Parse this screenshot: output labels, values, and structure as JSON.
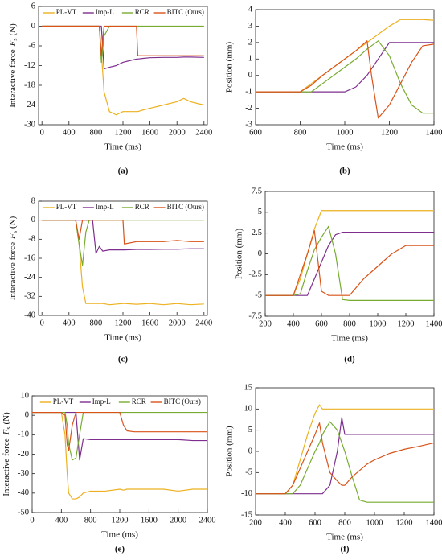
{
  "chart_data": [
    {
      "type": "line",
      "panel_label": "(a)",
      "x_label": "Time (ms)",
      "y_label": {
        "text": "Interactive force",
        "symbol": "F",
        "subscript": "s",
        "unit": "(N)"
      },
      "legend": "upper center",
      "xlim": [
        -50,
        2450
      ],
      "xticks": [
        0,
        400,
        800,
        1200,
        1600,
        2000,
        2400
      ],
      "ylim": [
        -30,
        6
      ],
      "yticks": [
        -30,
        -24,
        -18,
        -12,
        -6,
        0,
        6
      ],
      "x": [
        0,
        400,
        800,
        850,
        880,
        920,
        1000,
        1100,
        1200,
        1300,
        1400,
        1420,
        1500,
        1600,
        1800,
        2000,
        2100,
        2200,
        2400
      ],
      "series": [
        {
          "name": "PL-VT",
          "color": "#edb120",
          "values": [
            0,
            0,
            0,
            0,
            -8,
            -20,
            -26,
            -27,
            -26,
            -26,
            -26,
            -26,
            -25.5,
            -25,
            -24,
            -23,
            -22,
            -23,
            -24
          ]
        },
        {
          "name": "Imp-L",
          "color": "#7e2f8e",
          "values": [
            0,
            0,
            0,
            0,
            0,
            -13,
            -12.5,
            -12,
            -11,
            -10.5,
            -10,
            -10,
            -9.8,
            -9.6,
            -9.5,
            -9.5,
            -9.4,
            -9.4,
            -9.5
          ]
        },
        {
          "name": "RCR",
          "color": "#77ac30",
          "values": [
            0,
            0,
            0,
            0,
            -11,
            -3,
            0,
            0,
            0,
            0,
            0,
            0,
            0,
            0,
            0,
            0,
            0,
            0,
            0
          ]
        },
        {
          "name": "BITC (Ours)",
          "color": "#d95319",
          "values": [
            0,
            0,
            0,
            0,
            -9,
            0,
            0,
            0,
            0,
            0,
            0,
            -9,
            -9,
            -9,
            -9,
            -9,
            -9,
            -9,
            -9
          ]
        }
      ]
    },
    {
      "type": "line",
      "panel_label": "(b)",
      "x_label": "Time (ms)",
      "y_label": "Position (mm)",
      "xlim": [
        600,
        1400
      ],
      "xticks": [
        600,
        800,
        1000,
        1200,
        1400
      ],
      "ylim": [
        -3,
        4
      ],
      "yticks": [
        -3,
        -2,
        -1,
        0,
        1,
        2,
        3,
        4
      ],
      "x": [
        600,
        800,
        850,
        900,
        1000,
        1050,
        1100,
        1120,
        1150,
        1200,
        1250,
        1300,
        1350,
        1400
      ],
      "series": [
        {
          "name": "PL-VT",
          "color": "#edb120",
          "values": [
            -1,
            -1,
            -0.5,
            0,
            1,
            1.5,
            2,
            2.2,
            2.5,
            3,
            3.4,
            3.4,
            3.4,
            3.35
          ]
        },
        {
          "name": "Imp-L",
          "color": "#7e2f8e",
          "values": [
            -1,
            -1,
            -1,
            -1,
            -1,
            -0.7,
            0,
            0.4,
            1,
            2,
            2,
            2,
            2,
            2
          ]
        },
        {
          "name": "RCR",
          "color": "#77ac30",
          "values": [
            -1,
            -1,
            -1,
            -0.5,
            0.5,
            1,
            1.6,
            1.8,
            2.1,
            1.2,
            -0.5,
            -1.8,
            -2.3,
            -2.3
          ]
        },
        {
          "name": "BITC (Ours)",
          "color": "#d95319",
          "values": [
            -1,
            -1,
            -0.6,
            0,
            1,
            1.5,
            2.1,
            0,
            -2.6,
            -1.8,
            -0.5,
            0.8,
            1.8,
            1.9
          ]
        }
      ]
    },
    {
      "type": "line",
      "panel_label": "(c)",
      "x_label": "Time (ms)",
      "y_label": {
        "text": "Interactive force",
        "symbol": "F",
        "subscript": "s",
        "unit": "(N)"
      },
      "legend": "upper center",
      "xlim": [
        -50,
        2450
      ],
      "xticks": [
        0,
        400,
        800,
        1200,
        1600,
        2000,
        2400
      ],
      "ylim": [
        -40,
        8
      ],
      "yticks": [
        -40,
        -32,
        -24,
        -16,
        -8,
        0,
        8
      ],
      "x": [
        0,
        400,
        500,
        550,
        600,
        650,
        700,
        750,
        800,
        850,
        900,
        1000,
        1200,
        1220,
        1400,
        1600,
        1800,
        2000,
        2200,
        2400
      ],
      "series": [
        {
          "name": "PL-VT",
          "color": "#edb120",
          "values": [
            0,
            0,
            0,
            -10,
            -28,
            -35,
            -35,
            -35,
            -35,
            -35,
            -35,
            -35.5,
            -35,
            -35,
            -35.3,
            -35,
            -35.5,
            -35,
            -35.5,
            -35.2
          ]
        },
        {
          "name": "Imp-L",
          "color": "#7e2f8e",
          "values": [
            0,
            0,
            0,
            0,
            0,
            0,
            0,
            0,
            -14,
            -11,
            -13,
            -12.5,
            -12.5,
            -12.5,
            -12.3,
            -12.3,
            -12.2,
            -12.2,
            -12,
            -12
          ]
        },
        {
          "name": "RCR",
          "color": "#77ac30",
          "values": [
            0,
            0,
            0,
            -10,
            -19,
            -5,
            0,
            0,
            0,
            0,
            0,
            0,
            0,
            0,
            0,
            0,
            0,
            0,
            0,
            0
          ]
        },
        {
          "name": "BITC (Ours)",
          "color": "#d95319",
          "values": [
            0,
            0,
            0,
            -8,
            0,
            0,
            0,
            0,
            0,
            0,
            0,
            0,
            0,
            -10,
            -9,
            -9,
            -9,
            -8.5,
            -9,
            -9
          ]
        }
      ]
    },
    {
      "type": "line",
      "panel_label": "(d)",
      "x_label": "Time (ms)",
      "y_label": "Position (mm)",
      "xlim": [
        200,
        1400
      ],
      "xticks": [
        200,
        400,
        600,
        800,
        1000,
        1200,
        1400
      ],
      "ylim": [
        -7.5,
        7.5
      ],
      "yticks": [
        -7.5,
        -5,
        -2.5,
        0,
        2.5,
        5,
        7.5
      ],
      "x": [
        200,
        400,
        450,
        500,
        550,
        600,
        650,
        700,
        750,
        800,
        900,
        1000,
        1100,
        1200,
        1300,
        1400
      ],
      "series": [
        {
          "name": "PL-VT",
          "color": "#edb120",
          "values": [
            -5,
            -5,
            -3,
            0,
            3,
            5.2,
            5.2,
            5.2,
            5.2,
            5.2,
            5.2,
            5.2,
            5.2,
            5.2,
            5.2,
            5.2
          ]
        },
        {
          "name": "Imp-L",
          "color": "#7e2f8e",
          "values": [
            -5,
            -5,
            -5,
            -5,
            -3,
            -1,
            1,
            2.3,
            2.6,
            2.6,
            2.6,
            2.6,
            2.6,
            2.6,
            2.6,
            2.6
          ]
        },
        {
          "name": "RCR",
          "color": "#77ac30",
          "values": [
            -5,
            -5,
            -4.8,
            -2,
            0.5,
            2,
            3.3,
            0,
            -5.5,
            -5.6,
            -5.6,
            -5.6,
            -5.6,
            -5.6,
            -5.6,
            -5.6
          ]
        },
        {
          "name": "BITC (Ours)",
          "color": "#d95319",
          "values": [
            -5,
            -5,
            -2.5,
            0,
            2.8,
            -4.5,
            -5,
            -5,
            -5,
            -5,
            -3,
            -1.5,
            0,
            1,
            1,
            1
          ]
        }
      ]
    },
    {
      "type": "line",
      "panel_label": "(e)",
      "x_label": "Time (ms)",
      "y_label": {
        "text": "Interactive force",
        "symbol": "F",
        "subscript": "s",
        "unit": "(N)"
      },
      "legend": "upper center",
      "xlim": [
        0,
        2400
      ],
      "xticks": [
        0,
        400,
        800,
        1200,
        1600,
        2000,
        2400
      ],
      "ylim": [
        -50,
        10
      ],
      "yticks": [
        -50,
        -40,
        -30,
        -20,
        -10,
        0,
        10
      ],
      "x": [
        0,
        400,
        450,
        480,
        500,
        550,
        600,
        650,
        700,
        800,
        1000,
        1200,
        1250,
        1300,
        1400,
        1600,
        1800,
        2000,
        2200,
        2400
      ],
      "series": [
        {
          "name": "PL-VT",
          "color": "#edb120",
          "values": [
            1.5,
            1.5,
            -10,
            -30,
            -40,
            -43,
            -43,
            -42,
            -40,
            -39,
            -39,
            -38,
            -38.5,
            -38,
            -38,
            -38,
            -38,
            -39,
            -38,
            -38
          ]
        },
        {
          "name": "Imp-L",
          "color": "#7e2f8e",
          "values": [
            1.5,
            1.5,
            1.5,
            1.5,
            1.5,
            1.5,
            1.5,
            -23,
            -12,
            -12.5,
            -12.5,
            -12.5,
            -12.5,
            -12.5,
            -12.5,
            -12.5,
            -12.5,
            -12.5,
            -13,
            -13
          ]
        },
        {
          "name": "RCR",
          "color": "#77ac30",
          "values": [
            1.5,
            1.5,
            1.5,
            -5,
            -15,
            -23,
            -22,
            -10,
            1.5,
            1.5,
            1.5,
            1.5,
            1.5,
            1.5,
            1.5,
            1.5,
            1.5,
            1.5,
            1.5,
            1.5
          ]
        },
        {
          "name": "BITC (Ours)",
          "color": "#d95319",
          "values": [
            1.5,
            1.5,
            0,
            -15,
            -18,
            -5,
            1.5,
            1.5,
            1.5,
            1.5,
            1.5,
            1.5,
            -5,
            -8,
            -8.5,
            -8.5,
            -8.5,
            -8.5,
            -8.5,
            -8.5
          ]
        }
      ]
    },
    {
      "type": "line",
      "panel_label": "(f)",
      "x_label": "Time (ms)",
      "y_label": "Position (mm)",
      "xlim": [
        200,
        1400
      ],
      "xticks": [
        200,
        400,
        600,
        800,
        1000,
        1200,
        1400
      ],
      "ylim": [
        -15,
        15
      ],
      "yticks": [
        -15,
        -10,
        -5,
        0,
        5,
        10,
        15
      ],
      "x": [
        200,
        400,
        450,
        500,
        550,
        600,
        630,
        650,
        700,
        750,
        780,
        800,
        850,
        900,
        950,
        1000,
        1100,
        1200,
        1300,
        1400
      ],
      "series": [
        {
          "name": "PL-VT",
          "color": "#edb120",
          "values": [
            -10,
            -10,
            -8,
            -2,
            4,
            9,
            11,
            10,
            10,
            10,
            10,
            10,
            10,
            10,
            10,
            10,
            10,
            10,
            10,
            10
          ]
        },
        {
          "name": "Imp-L",
          "color": "#7e2f8e",
          "values": [
            -10,
            -10,
            -10,
            -10,
            -10,
            -10,
            -10,
            -10,
            -8,
            0,
            8,
            4,
            4,
            4,
            4,
            4,
            4,
            4,
            4,
            4
          ]
        },
        {
          "name": "RCR",
          "color": "#77ac30",
          "values": [
            -10,
            -10,
            -10,
            -8,
            -4,
            0,
            2,
            4,
            7,
            5,
            2,
            0,
            -6,
            -11.5,
            -12,
            -12,
            -12,
            -12,
            -12,
            -12
          ]
        },
        {
          "name": "BITC (Ours)",
          "color": "#d95319",
          "values": [
            -10,
            -10,
            -8,
            -4,
            0,
            4,
            6.7,
            2,
            -5,
            -7,
            -8,
            -8,
            -6,
            -4.5,
            -3,
            -2,
            -0.5,
            0.5,
            1.2,
            2
          ]
        }
      ]
    }
  ]
}
